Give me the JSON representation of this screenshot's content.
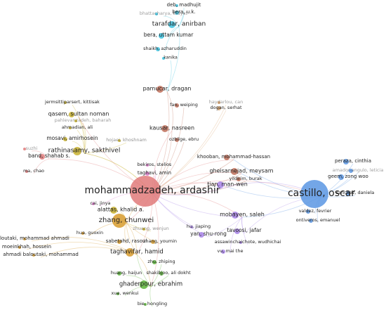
{
  "nodes": [
    {
      "label": "deb, madhujit"
    },
    {
      "label": "bera, u.k."
    },
    {
      "label": "bhattacharya, bidyut"
    },
    {
      "label": "tarafdar, anirban"
    },
    {
      "label": "bera, uttam kumar"
    },
    {
      "label": "shaikh, azharuddin"
    },
    {
      "label": "kanika"
    },
    {
      "label": "pamucar, dragan"
    },
    {
      "label": "fan, weiping"
    },
    {
      "label": "haydarlou, can"
    },
    {
      "label": "dogan, serhat"
    },
    {
      "label": "jermsittiparsert, kittisak"
    },
    {
      "label": "qasem, sultan noman"
    },
    {
      "label": "pahlevanzadeh, baharah"
    },
    {
      "label": "ahmadian, ali"
    },
    {
      "label": "kausar, nasreen"
    },
    {
      "label": "mosavi, amirhosein"
    },
    {
      "label": "hojaei, khoshnam"
    },
    {
      "label": "ozbilge, ebru"
    },
    {
      "label": "rathinasamy, sakthivel"
    },
    {
      "label": "suzhi"
    },
    {
      "label": "band, shahab s."
    },
    {
      "label": "ma, chao"
    },
    {
      "label": "khooban, mohammad-hassan"
    },
    {
      "label": "peraza, cinthia"
    },
    {
      "label": "bekiros, stelios"
    },
    {
      "label": "gheisarnejad, meysam"
    },
    {
      "label": "yildirim, burak"
    },
    {
      "label": "taghavi, amin"
    },
    {
      "label": "geem, zong woo"
    },
    {
      "label": "amador-angulo, leticia"
    },
    {
      "label": "mohammadzadeh, ardashir"
    },
    {
      "label": "castillo, oscar"
    },
    {
      "label": "sanchez, daniela"
    },
    {
      "label": "tian, man-wen"
    },
    {
      "label": "cai, jinya"
    },
    {
      "label": "alattas, khalid a."
    },
    {
      "label": "zhang, chunwei"
    },
    {
      "label": "valdez, fevrier"
    },
    {
      "label": "ontiveros, emanuel"
    },
    {
      "label": "mobayen, saleh"
    },
    {
      "label": "tavoosi, jafar"
    },
    {
      "label": "hu, jiaping"
    },
    {
      "label": "yan, shu-rong"
    },
    {
      "label": "zhuang, wenjun"
    },
    {
      "label": "hua, guoxin"
    },
    {
      "label": "sabetahd, rasoul"
    },
    {
      "label": "zhang, youmin"
    },
    {
      "label": "assawinchaichote, wudhichai"
    },
    {
      "label": "baloutaki, mohammad ahmadi"
    },
    {
      "label": "moeinkhah, hossein"
    },
    {
      "label": "ahmadi baloutaki, mohammad"
    },
    {
      "label": "taghavifar, hamid"
    },
    {
      "label": "vu, mai the"
    },
    {
      "label": "zhu, zhiping"
    },
    {
      "label": "huang, haijun"
    },
    {
      "label": "shakibjoo, ali dokht"
    },
    {
      "label": "ghaderpour, ebrahim"
    },
    {
      "label": "xue, wenkui"
    },
    {
      "label": "bie, hongling"
    }
  ]
}
